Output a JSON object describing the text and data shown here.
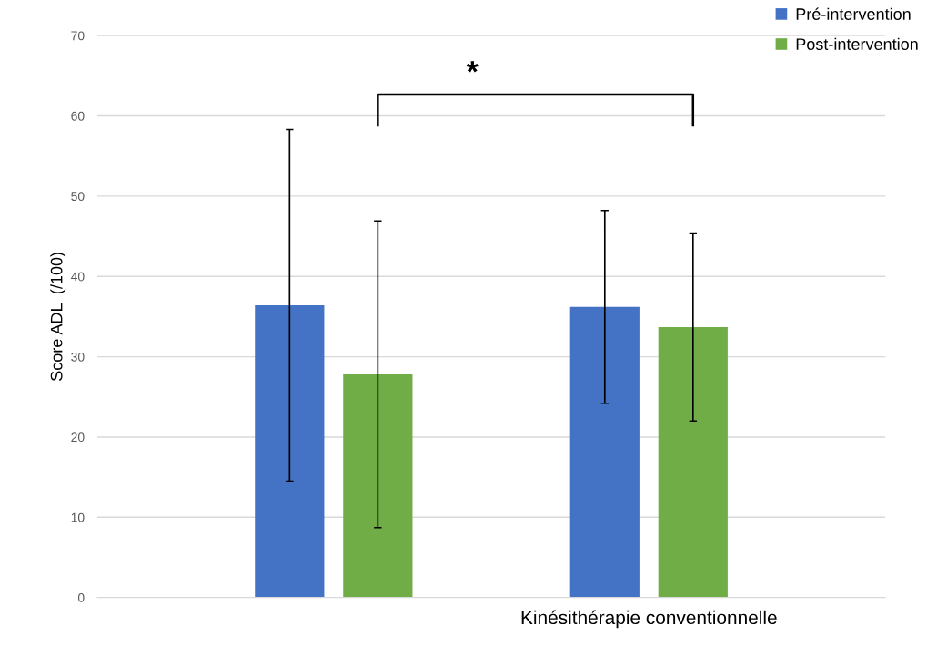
{
  "chart_data": {
    "type": "bar",
    "ylabel": "Score ADL  (/100)",
    "categories": [
      null,
      "Kinésithérapie conventionnelle"
    ],
    "series": [
      {
        "name": "Pré-intervention",
        "color": "#4472c4",
        "values": [
          36.4,
          36.2
        ],
        "errors": [
          21.9,
          12.0
        ]
      },
      {
        "name": "Post-intervention",
        "color": "#70ad47",
        "values": [
          27.8,
          33.7
        ],
        "errors": [
          19.1,
          11.7
        ]
      }
    ],
    "ylim": [
      0,
      70
    ],
    "yticks": [
      0,
      10,
      20,
      30,
      40,
      50,
      60,
      70
    ],
    "grid": "y",
    "legend": "top right",
    "annotations": [
      "*"
    ]
  }
}
